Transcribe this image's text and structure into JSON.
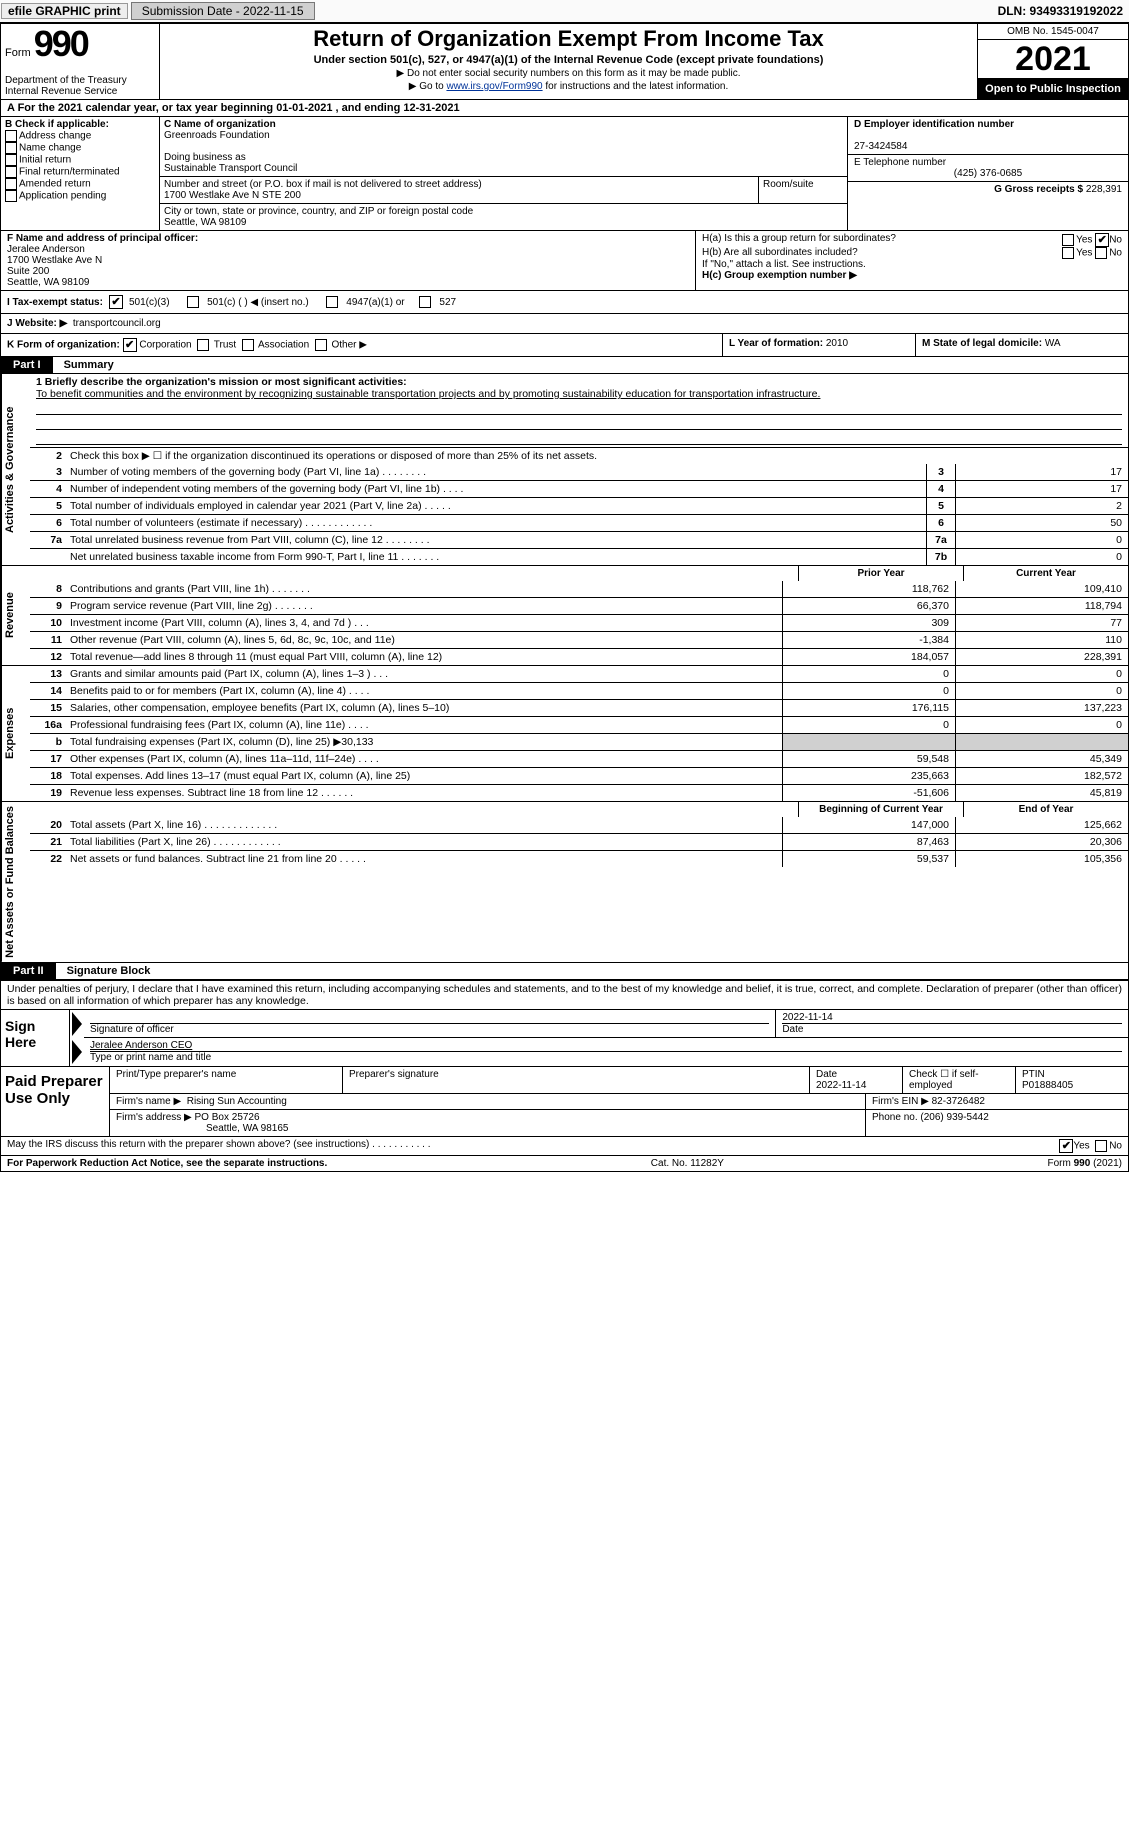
{
  "topbar": {
    "efile": "efile GRAPHIC print",
    "submission_label": "Submission Date - 2022-11-15",
    "dln": "DLN: 93493319192022"
  },
  "header": {
    "form_word": "Form",
    "form_num": "990",
    "title": "Return of Organization Exempt From Income Tax",
    "subtitle": "Under section 501(c), 527, or 4947(a)(1) of the Internal Revenue Code (except private foundations)",
    "note1": "▶ Do not enter social security numbers on this form as it may be made public.",
    "note2_pre": "▶ Go to ",
    "note2_link": "www.irs.gov/Form990",
    "note2_post": " for instructions and the latest information.",
    "dept": "Department of the Treasury\nInternal Revenue Service",
    "omb": "OMB No. 1545-0047",
    "year": "2021",
    "open": "Open to Public Inspection"
  },
  "row_a": "A For the 2021 calendar year, or tax year beginning 01-01-2021   , and ending 12-31-2021",
  "id": {
    "B_label": "B Check if applicable:",
    "B_items": [
      "Address change",
      "Name change",
      "Initial return",
      "Final return/terminated",
      "Amended return",
      "Application pending"
    ],
    "C_label": "C Name of organization",
    "C_name": "Greenroads Foundation",
    "dba_label": "Doing business as",
    "dba": "Sustainable Transport Council",
    "addr_label": "Number and street (or P.O. box if mail is not delivered to street address)",
    "room_label": "Room/suite",
    "addr": "1700 Westlake Ave N STE 200",
    "city_label": "City or town, state or province, country, and ZIP or foreign postal code",
    "city": "Seattle, WA  98109",
    "D_label": "D Employer identification number",
    "D_ein": "27-3424584",
    "E_label": "E Telephone number",
    "E_phone": "(425) 376-0685",
    "G_label": "G Gross receipts $",
    "G_val": "228,391",
    "F_label": "F  Name and address of principal officer:",
    "F_name": "Jeralee Anderson",
    "F_addr1": "1700 Westlake Ave N",
    "F_addr2": "Suite 200",
    "F_addr3": "Seattle, WA  98109",
    "Ha_label": "H(a)  Is this a group return for subordinates?",
    "Hb_label": "H(b)  Are all subordinates included?",
    "H_note": "If \"No,\" attach a list. See instructions.",
    "Hc_label": "H(c)  Group exemption number ▶",
    "yes": "Yes",
    "no": "No"
  },
  "row_I": {
    "label": "I  Tax-exempt status:",
    "o1": "501(c)(3)",
    "o2": "501(c) (  ) ◀ (insert no.)",
    "o3": "4947(a)(1) or",
    "o4": "527"
  },
  "row_J": {
    "label": "J  Website: ▶",
    "val": "transportcouncil.org"
  },
  "row_K": {
    "label": "K Form of organization:",
    "o1": "Corporation",
    "o2": "Trust",
    "o3": "Association",
    "o4": "Other ▶"
  },
  "row_L": {
    "label": "L Year of formation:",
    "val": "2010"
  },
  "row_M": {
    "label": "M State of legal domicile:",
    "val": "WA"
  },
  "parts": {
    "p1": "Part I",
    "p1_title": "Summary",
    "p2": "Part II",
    "p2_title": "Signature Block"
  },
  "summary": {
    "vlabels": {
      "gov": "Activities & Governance",
      "rev": "Revenue",
      "exp": "Expenses",
      "net": "Net Assets or Fund Balances"
    },
    "l1_label": "1  Briefly describe the organization's mission or most significant activities:",
    "mission": "To benefit communities and the environment by recognizing sustainable transportation projects and by promoting sustainability education for transportation infrastructure.",
    "l2": "Check this box ▶ ☐  if the organization discontinued its operations or disposed of more than 25% of its net assets.",
    "rows_gov": [
      {
        "n": "3",
        "t": "Number of voting members of the governing body (Part VI, line 1a)   .    .    .    .    .    .    .    .",
        "box": "3",
        "v": "17"
      },
      {
        "n": "4",
        "t": "Number of independent voting members of the governing body (Part VI, line 1b)    .    .    .    .",
        "box": "4",
        "v": "17"
      },
      {
        "n": "5",
        "t": "Total number of individuals employed in calendar year 2021 (Part V, line 2a)   .    .    .    .    .",
        "box": "5",
        "v": "2"
      },
      {
        "n": "6",
        "t": "Total number of volunteers (estimate if necessary)    .    .    .    .    .    .    .    .    .    .    .    .",
        "box": "6",
        "v": "50"
      },
      {
        "n": "7a",
        "t": "Total unrelated business revenue from Part VIII, column (C), line 12   .    .    .    .    .    .    .    .",
        "box": "7a",
        "v": "0"
      },
      {
        "n": "",
        "t": "Net unrelated business taxable income from Form 990-T, Part I, line 11    .    .    .    .    .    .    .",
        "box": "7b",
        "v": "0"
      }
    ],
    "header_prior": "Prior Year",
    "header_current": "Current Year",
    "rows_rev": [
      {
        "n": "8",
        "t": "Contributions and grants (Part VIII, line 1h)   .    .    .    .    .    .    .",
        "p": "118,762",
        "c": "109,410"
      },
      {
        "n": "9",
        "t": "Program service revenue (Part VIII, line 2g)    .    .    .    .    .    .    .",
        "p": "66,370",
        "c": "118,794"
      },
      {
        "n": "10",
        "t": "Investment income (Part VIII, column (A), lines 3, 4, and 7d )   .    .    .",
        "p": "309",
        "c": "77"
      },
      {
        "n": "11",
        "t": "Other revenue (Part VIII, column (A), lines 5, 6d, 8c, 9c, 10c, and 11e)",
        "p": "-1,384",
        "c": "110"
      },
      {
        "n": "12",
        "t": "Total revenue—add lines 8 through 11 (must equal Part VIII, column (A), line 12)",
        "p": "184,057",
        "c": "228,391"
      }
    ],
    "rows_exp": [
      {
        "n": "13",
        "t": "Grants and similar amounts paid (Part IX, column (A), lines 1–3 )   .    .    .",
        "p": "0",
        "c": "0"
      },
      {
        "n": "14",
        "t": "Benefits paid to or for members (Part IX, column (A), line 4)   .    .    .    .",
        "p": "0",
        "c": "0"
      },
      {
        "n": "15",
        "t": "Salaries, other compensation, employee benefits (Part IX, column (A), lines 5–10)",
        "p": "176,115",
        "c": "137,223"
      },
      {
        "n": "16a",
        "t": "Professional fundraising fees (Part IX, column (A), line 11e)   .    .    .    .",
        "p": "0",
        "c": "0"
      },
      {
        "n": "b",
        "t": "Total fundraising expenses (Part IX, column (D), line 25) ▶30,133",
        "p": "",
        "c": "",
        "shaded": true
      },
      {
        "n": "17",
        "t": "Other expenses (Part IX, column (A), lines 11a–11d, 11f–24e)    .    .    .    .",
        "p": "59,548",
        "c": "45,349"
      },
      {
        "n": "18",
        "t": "Total expenses. Add lines 13–17 (must equal Part IX, column (A), line 25)",
        "p": "235,663",
        "c": "182,572"
      },
      {
        "n": "19",
        "t": "Revenue less expenses. Subtract line 18 from line 12   .    .    .    .    .    .",
        "p": "-51,606",
        "c": "45,819"
      }
    ],
    "header_begin": "Beginning of Current Year",
    "header_end": "End of Year",
    "rows_net": [
      {
        "n": "20",
        "t": "Total assets (Part X, line 16)   .    .    .    .    .    .    .    .    .    .    .    .    .",
        "p": "147,000",
        "c": "125,662"
      },
      {
        "n": "21",
        "t": "Total liabilities (Part X, line 26)    .    .    .    .    .    .    .    .    .    .    .    .",
        "p": "87,463",
        "c": "20,306"
      },
      {
        "n": "22",
        "t": "Net assets or fund balances. Subtract line 21 from line 20   .    .    .    .    .",
        "p": "59,537",
        "c": "105,356"
      }
    ]
  },
  "penalties": "Under penalties of perjury, I declare that I have examined this return, including accompanying schedules and statements, and to the best of my knowledge and belief, it is true, correct, and complete. Declaration of preparer (other than officer) is based on all information of which preparer has any knowledge.",
  "sign": {
    "left": "Sign Here",
    "sig_officer_label": "Signature of officer",
    "date": "2022-11-14",
    "date_label": "Date",
    "name": "Jeralee Anderson CEO",
    "name_label": "Type or print name and title"
  },
  "paid": {
    "left": "Paid Preparer Use Only",
    "h_preparer": "Print/Type preparer's name",
    "h_sig": "Preparer's signature",
    "h_date": "Date",
    "date": "2022-11-14",
    "check_label": "Check ☐ if self-employed",
    "ptin_label": "PTIN",
    "ptin": "P01888405",
    "firm_name_label": "Firm's name    ▶",
    "firm_name": "Rising Sun Accounting",
    "firm_ein_label": "Firm's EIN ▶",
    "firm_ein": "82-3726482",
    "firm_addr_label": "Firm's address ▶",
    "firm_addr": "PO Box 25726",
    "firm_city": "Seattle, WA  98165",
    "phone_label": "Phone no.",
    "phone": "(206) 939-5442"
  },
  "discuss": {
    "text": "May the IRS discuss this return with the preparer shown above? (see instructions)   .    .    .    .    .    .    .    .    .    .    .",
    "yes": "Yes",
    "no": "No"
  },
  "footer": {
    "left": "For Paperwork Reduction Act Notice, see the separate instructions.",
    "cat": "Cat. No. 11282Y",
    "right": "Form 990 (2021)"
  }
}
